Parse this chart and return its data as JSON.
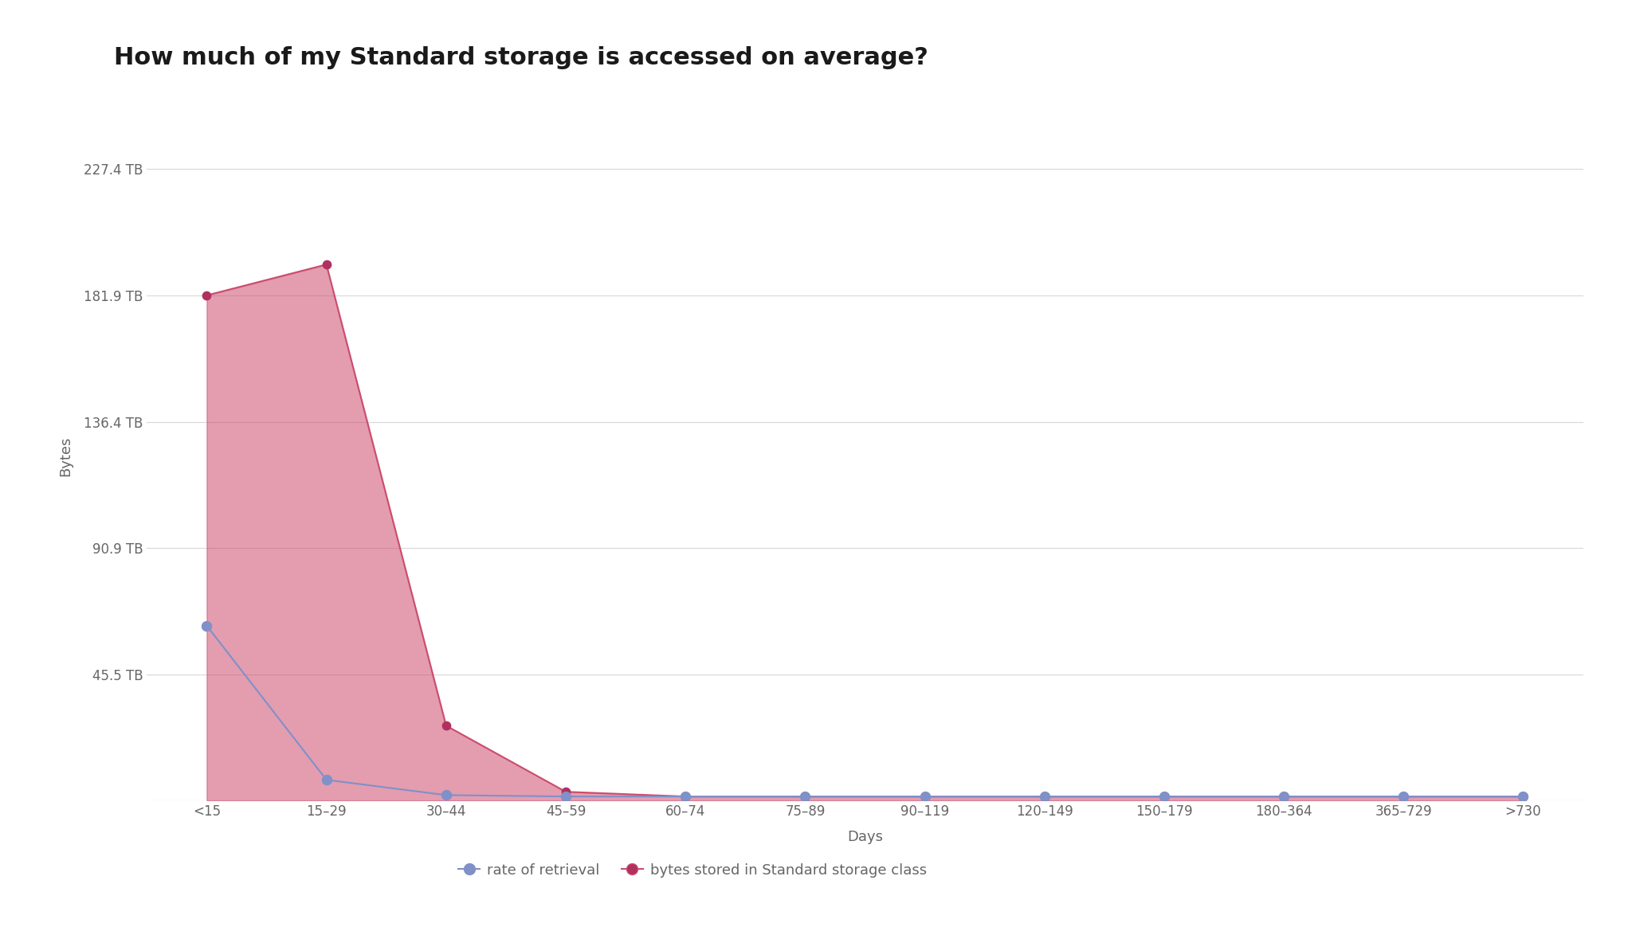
{
  "title": "How much of my Standard storage is accessed on average?",
  "xlabel": "Days",
  "ylabel": "Bytes",
  "categories": [
    "<15",
    "15–29",
    "30–44",
    "45–59",
    "60–74",
    "75–89",
    "90–119",
    "120–149",
    "150–179",
    "180–364",
    "365–729",
    ">730"
  ],
  "bytes_stored": [
    181.9,
    193.0,
    27.0,
    3.2,
    1.5,
    1.5,
    1.5,
    1.5,
    1.5,
    1.5,
    1.5,
    1.5
  ],
  "rate_of_retrieval": [
    63.0,
    7.5,
    2.0,
    1.5,
    1.5,
    1.5,
    1.5,
    1.5,
    1.5,
    1.5,
    1.5,
    1.5
  ],
  "yticks": [
    0,
    45.5,
    90.9,
    136.4,
    181.9,
    227.4
  ],
  "ytick_labels": [
    "",
    "45.5 TB",
    "90.9 TB",
    "136.4 TB",
    "181.9 TB",
    "227.4 TB"
  ],
  "ymax": 248,
  "fill_color": "#cc4d6e",
  "fill_alpha": 0.55,
  "line_color_retrieval": "#8090c8",
  "line_color_stored": "#cc4d6e",
  "marker_color_retrieval": "#8090c8",
  "marker_color_stored": "#b03060",
  "background_color": "#ffffff",
  "grid_color": "#d8d8d8",
  "title_fontsize": 22,
  "axis_label_fontsize": 13,
  "tick_fontsize": 12,
  "legend_fontsize": 13
}
